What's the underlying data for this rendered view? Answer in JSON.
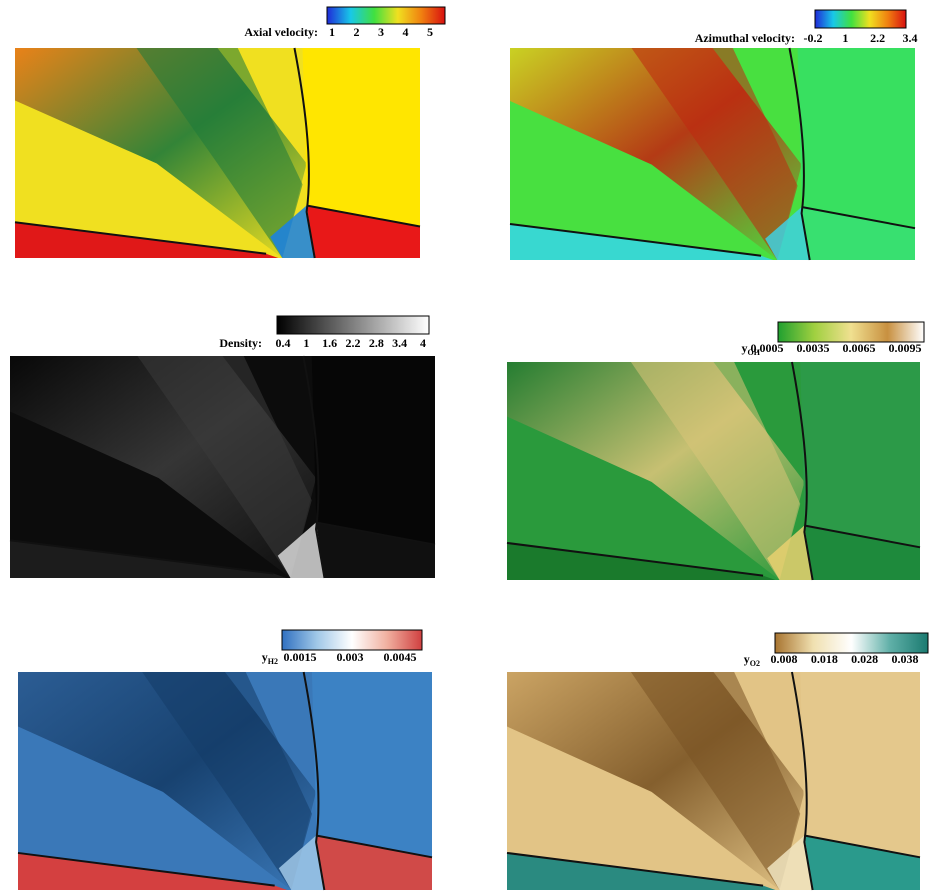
{
  "panels": [
    {
      "label": "Axial velocity:",
      "ticks": [
        "1",
        "2",
        "3",
        "4",
        "5"
      ]
    },
    {
      "label": "Azimuthal velocity:",
      "ticks": [
        "-0.2",
        "1",
        "2.2",
        "3.4"
      ]
    },
    {
      "label": "Density:",
      "ticks": [
        "0.4",
        "1",
        "1.6",
        "2.2",
        "2.8",
        "3.4",
        "4"
      ]
    },
    {
      "label": "y",
      "subscript": "OH",
      "ticks": [
        "0.0005",
        "0.0035",
        "0.0065",
        "0.0095"
      ]
    },
    {
      "label": "y",
      "subscript": "H2",
      "ticks": [
        "0.0015",
        "0.003",
        "0.0045"
      ]
    },
    {
      "label": "y",
      "subscript": "O2",
      "ticks": [
        "0.008",
        "0.018",
        "0.028",
        "0.038"
      ]
    }
  ]
}
